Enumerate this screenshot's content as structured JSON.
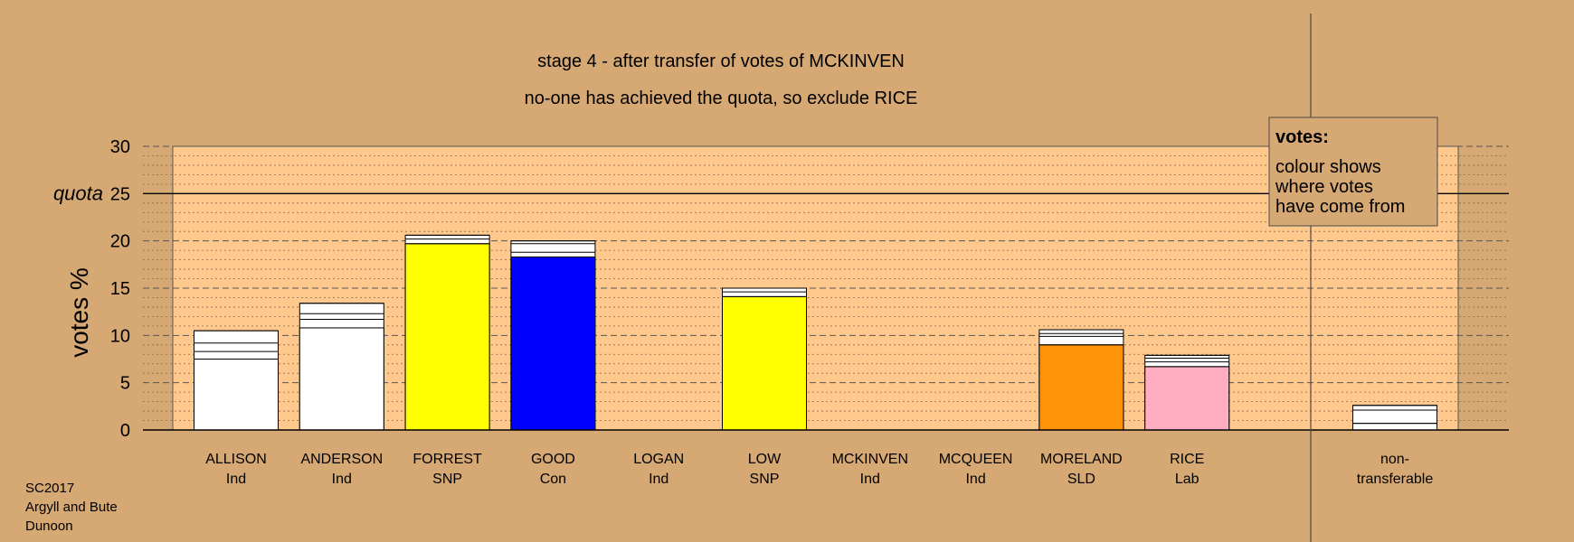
{
  "chart_data": {
    "type": "bar",
    "title": "stage 4 - after transfer of votes of MCKINVEN",
    "subtitle": "no-one has achieved the quota, so exclude RICE",
    "ylabel": "votes %",
    "ylim": [
      0,
      30
    ],
    "yticks": [
      0,
      5,
      10,
      15,
      20,
      25,
      30
    ],
    "quota": 25,
    "quota_label": "quota",
    "grid": true,
    "legend": {
      "title": "votes:",
      "lines": [
        "colour shows",
        "where votes",
        "have come from"
      ],
      "position": "top-right"
    },
    "candidates": [
      {
        "name": "ALLISON",
        "party": "Ind",
        "color": "#ffffff",
        "total": 10.5,
        "segments": [
          7.5,
          8.3,
          9.2,
          10.5
        ]
      },
      {
        "name": "ANDERSON",
        "party": "Ind",
        "color": "#ffffff",
        "total": 13.4,
        "segments": [
          10.8,
          11.7,
          12.3,
          13.4
        ]
      },
      {
        "name": "FORREST",
        "party": "SNP",
        "color": "#ffff00",
        "total": 20.6,
        "segments": [
          19.7,
          20.2,
          20.6
        ]
      },
      {
        "name": "GOOD",
        "party": "Con",
        "color": "#0000ff",
        "total": 20.0,
        "segments": [
          18.3,
          18.8,
          19.7,
          20.0
        ]
      },
      {
        "name": "LOGAN",
        "party": "Ind",
        "color": "#ffffff",
        "total": 0,
        "segments": []
      },
      {
        "name": "LOW",
        "party": "SNP",
        "color": "#ffff00",
        "total": 15.0,
        "segments": [
          14.1,
          14.6,
          15.0
        ]
      },
      {
        "name": "MCKINVEN",
        "party": "Ind",
        "color": "#ffffff",
        "total": 0,
        "segments": []
      },
      {
        "name": "MCQUEEN",
        "party": "Ind",
        "color": "#ffffff",
        "total": 0,
        "segments": []
      },
      {
        "name": "MORELAND",
        "party": "SLD",
        "color": "#ff9408",
        "total": 10.6,
        "segments": [
          9.0,
          9.9,
          10.2,
          10.6
        ]
      },
      {
        "name": "RICE",
        "party": "Lab",
        "color": "#ffadc0",
        "total": 7.9,
        "segments": [
          6.7,
          7.2,
          7.6,
          7.9
        ]
      }
    ],
    "non_transferable": {
      "label": "non-\ntransferable",
      "color": "#ffffff",
      "total": 2.6,
      "segments": [
        0.7,
        2.1,
        2.6
      ]
    }
  },
  "footer": {
    "line1": "SC2017",
    "line2": "Argyll and Bute",
    "line3": "Dunoon"
  }
}
